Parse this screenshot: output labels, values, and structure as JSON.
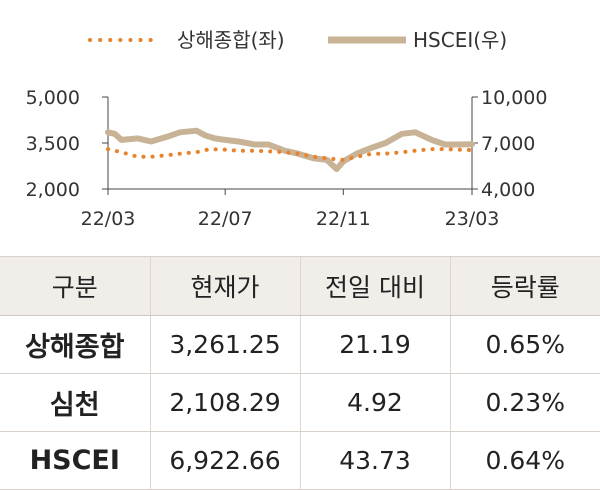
{
  "chart_data": {
    "type": "line",
    "x_ticks": [
      "22/03",
      "22/07",
      "22/11",
      "23/03"
    ],
    "y_left": {
      "ticks": [
        "5,000",
        "3,500",
        "2,000"
      ],
      "range": [
        2000,
        5000
      ]
    },
    "y_right": {
      "ticks": [
        "10,000",
        "7,000",
        "4,000"
      ],
      "range": [
        4000,
        10000
      ]
    },
    "series": [
      {
        "name": "상해종합(좌)",
        "axis": "left",
        "color": "#e8822b",
        "style": "dotted",
        "x": [
          "2022-03-01",
          "2022-03-15",
          "2022-04-01",
          "2022-04-15",
          "2022-05-01",
          "2022-05-15",
          "2022-06-01",
          "2022-06-15",
          "2022-07-01",
          "2022-07-15",
          "2022-08-01",
          "2022-08-15",
          "2022-09-01",
          "2022-09-15",
          "2022-10-01",
          "2022-10-15",
          "2022-10-31",
          "2022-11-15",
          "2022-12-01",
          "2022-12-15",
          "2023-01-01",
          "2023-01-15",
          "2023-02-01",
          "2023-02-15",
          "2023-03-01",
          "2023-03-15"
        ],
        "y": [
          3300,
          3200,
          3050,
          3050,
          3100,
          3150,
          3200,
          3300,
          3280,
          3250,
          3250,
          3230,
          3200,
          3150,
          3050,
          3000,
          2950,
          3050,
          3150,
          3150,
          3200,
          3250,
          3300,
          3300,
          3280,
          3270
        ]
      },
      {
        "name": "HSCEI(우)",
        "axis": "right",
        "color": "#c8b396",
        "style": "solid",
        "x": [
          "2022-03-01",
          "2022-03-08",
          "2022-03-15",
          "2022-04-01",
          "2022-04-15",
          "2022-05-01",
          "2022-05-15",
          "2022-06-01",
          "2022-06-10",
          "2022-06-20",
          "2022-07-01",
          "2022-07-15",
          "2022-08-01",
          "2022-08-15",
          "2022-09-01",
          "2022-09-15",
          "2022-10-01",
          "2022-10-15",
          "2022-10-25",
          "2022-11-01",
          "2022-11-15",
          "2022-12-01",
          "2022-12-15",
          "2023-01-01",
          "2023-01-15",
          "2023-02-01",
          "2023-02-15",
          "2023-03-01",
          "2023-03-15"
        ],
        "y": [
          7700,
          7600,
          7200,
          7300,
          7100,
          7400,
          7700,
          7800,
          7500,
          7300,
          7200,
          7100,
          6900,
          6900,
          6500,
          6300,
          6000,
          5900,
          5300,
          5800,
          6300,
          6700,
          7000,
          7600,
          7700,
          7200,
          6900,
          6900,
          6920
        ]
      }
    ]
  },
  "table": {
    "headers": [
      "구분",
      "현재가",
      "전일 대비",
      "등락률"
    ],
    "rows": [
      [
        "상해종합",
        "3,261.25",
        "21.19",
        "0.65%"
      ],
      [
        "심천",
        "2,108.29",
        "4.92",
        "0.23%"
      ],
      [
        "HSCEI",
        "6,922.66",
        "43.73",
        "0.64%"
      ]
    ]
  }
}
